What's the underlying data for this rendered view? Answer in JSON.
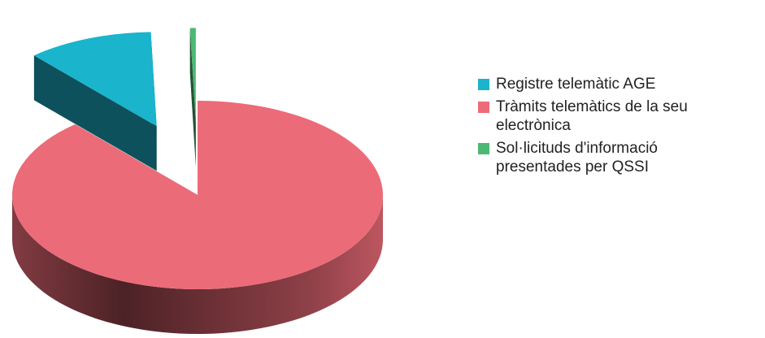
{
  "chart_data": {
    "type": "pie",
    "series": [
      {
        "name": "Registre telemàtic AGE",
        "color": "#1ab4cc",
        "values": [
          11
        ]
      },
      {
        "name": "Tràmits telemàtics de la seu electrònica",
        "color": "#ec6b78",
        "values": [
          88.5
        ]
      },
      {
        "name": "Sol·licituds d'informació presentades per QSSI",
        "color": "#4cb873",
        "values": [
          0.5
        ]
      }
    ],
    "legend": "right"
  }
}
